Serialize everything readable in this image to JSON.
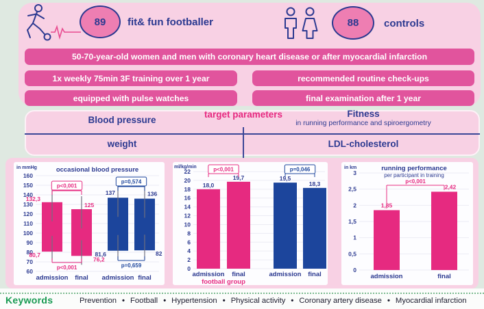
{
  "header": {
    "group1": {
      "count": "89",
      "label": "fit& fun footballer",
      "icon": "footballer-kicking-ball-icon"
    },
    "group2": {
      "count": "88",
      "label": "controls",
      "icon": "man-woman-outline-icon"
    },
    "pulse_icon": "ecg-pulse-line-icon"
  },
  "banners": {
    "row1": "50-70-year-old women and men with coronary heart disease or after myocardial infarction",
    "row2_left": "1x weekly 75min 3F training over 1 year",
    "row2_right": "recommended routine check-ups",
    "row3_left": "equipped with pulse watches",
    "row3_right": "final examination after 1 year"
  },
  "target_parameters": {
    "title": "target parameters",
    "top_left": "Blood pressure",
    "top_right": "Fitness",
    "top_right_sub": "in running performance and spiroergometry",
    "bottom_left": "weight",
    "bottom_right": "LDL-cholesterol"
  },
  "keywords": {
    "label": "Keywords",
    "items": [
      "Prevention",
      "Football",
      "Hypertension",
      "Physical activity",
      "Coronary artery disease",
      "Myocardial infarction"
    ]
  },
  "colors": {
    "background_green": "#dfe9e1",
    "card_pink": "#f8d1e4",
    "banner_pink": "#e1549d",
    "badge_pink": "#ee7eb2",
    "navy": "#2b3990",
    "bar_pink": "#e62a80",
    "bar_blue": "#1c459c",
    "keywords_green": "#189a52"
  },
  "chart_data": [
    {
      "type": "bar",
      "variant": "floating-range",
      "title": "occasional blood pressure",
      "ylabel": "in mmHg",
      "ylim": [
        60,
        160
      ],
      "ytick_step": 10,
      "grid": true,
      "legend_position": "none",
      "categories": [
        "admission",
        "final",
        "admission",
        "final"
      ],
      "groups": [
        "football",
        "football",
        "control",
        "control"
      ],
      "bars": [
        {
          "low": 80.7,
          "high": 132.3,
          "low_label": "80,7",
          "high_label": "132,3",
          "color": "pink"
        },
        {
          "low": 76.2,
          "high": 125,
          "low_label": "76,2",
          "high_label": "125",
          "color": "pink"
        },
        {
          "low": 81.6,
          "high": 137,
          "low_label": "81,6",
          "high_label": "137",
          "color": "blue"
        },
        {
          "low": 82,
          "high": 136,
          "low_label": "82",
          "high_label": "136",
          "color": "blue"
        }
      ],
      "brackets": [
        {
          "bars": [
            0,
            1
          ],
          "label": "p<0,001",
          "color": "pink",
          "position": "top"
        },
        {
          "bars": [
            2,
            3
          ],
          "label": "p=0,574",
          "color": "blue",
          "position": "top"
        },
        {
          "bars": [
            0,
            1
          ],
          "label": "p<0,001",
          "color": "pink",
          "position": "bottom"
        },
        {
          "bars": [
            2,
            3
          ],
          "label": "p=0,659",
          "color": "blue",
          "position": "bottom"
        }
      ]
    },
    {
      "type": "bar",
      "title": "",
      "ylabel": "ml/kg/min",
      "ylim": [
        0,
        22
      ],
      "ytick_step": 2,
      "grid": true,
      "value_label_color": "navy",
      "categories": [
        "admission",
        "final",
        "admission",
        "final"
      ],
      "groups": [
        "football",
        "football",
        "control",
        "control"
      ],
      "group_label": "football group",
      "bars": [
        {
          "value": 18.0,
          "label": "18,0",
          "color": "pink"
        },
        {
          "value": 19.7,
          "label": "19,7",
          "color": "pink"
        },
        {
          "value": 19.5,
          "label": "19,5",
          "color": "blue"
        },
        {
          "value": 18.3,
          "label": "18,3",
          "color": "blue"
        }
      ],
      "brackets": [
        {
          "bars": [
            0,
            1
          ],
          "label": "p<0,001",
          "color": "pink",
          "position": "top"
        },
        {
          "bars": [
            2,
            3
          ],
          "label": "p=0,046",
          "color": "blue",
          "position": "top"
        }
      ]
    },
    {
      "type": "bar",
      "title": "running performance",
      "subtitle": "per participant in training",
      "ylabel": "in km",
      "ylim": [
        0,
        3
      ],
      "ytick_step": 0.5,
      "grid": true,
      "value_label_color": "pink",
      "categories": [
        "admission",
        "final"
      ],
      "bars": [
        {
          "value": 1.85,
          "label": "1,85",
          "color": "pink"
        },
        {
          "value": 2.42,
          "label": "2,42",
          "color": "pink"
        }
      ],
      "brackets": [
        {
          "bars": [
            0,
            1
          ],
          "label": "p<0,001",
          "color": "pink",
          "position": "top"
        }
      ]
    }
  ]
}
